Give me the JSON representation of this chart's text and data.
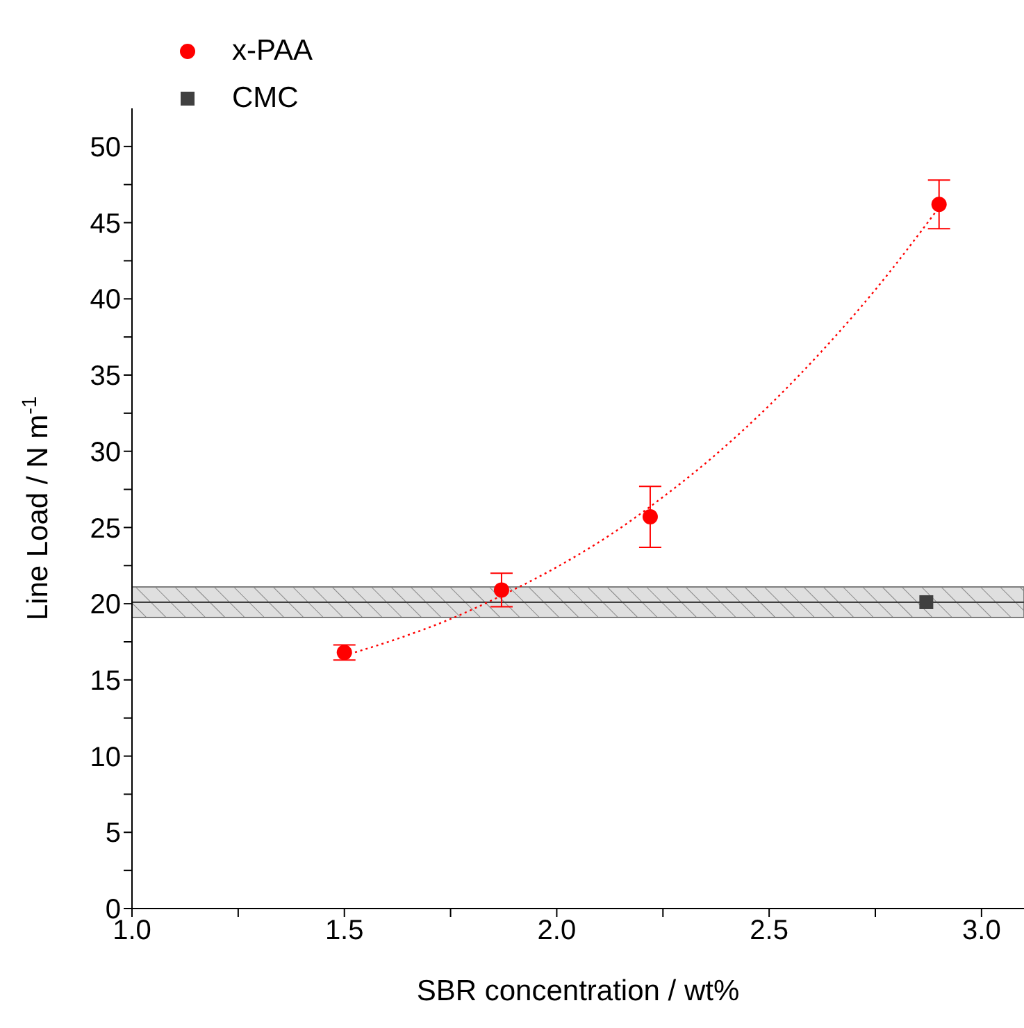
{
  "chart_data": {
    "type": "scatter",
    "xlabel": "SBR concentration / wt%",
    "ylabel": "Line Load / N m$^{-1}$",
    "xlim": [
      1.0,
      3.1
    ],
    "ylim": [
      0,
      52.5
    ],
    "xticks": [
      {
        "value": 1,
        "label": "1.0"
      },
      {
        "value": 1.25,
        "label": null
      },
      1.5,
      {
        "value": 1.75,
        "label": null
      },
      {
        "value": 2,
        "label": "2.0"
      },
      {
        "value": 2.25,
        "label": null
      },
      2.5,
      {
        "value": 2.75,
        "label": null
      },
      {
        "value": 3,
        "label": "3.0"
      }
    ],
    "yticks": [
      0,
      {
        "value": 2.5,
        "label": null
      },
      5,
      {
        "value": 7.5,
        "label": null
      },
      10,
      {
        "value": 12.5,
        "label": null
      },
      15,
      {
        "value": 17.5,
        "label": null
      },
      20,
      {
        "value": 22.5,
        "label": null
      },
      25,
      {
        "value": 27.5,
        "label": null
      },
      30,
      {
        "value": 32.5,
        "label": null
      },
      35,
      {
        "value": 37.5,
        "label": null
      },
      40,
      {
        "value": 42.5,
        "label": null
      },
      45,
      {
        "value": 47.5,
        "label": null
      },
      50
    ],
    "legend": "top left",
    "grid": false,
    "series": [
      {
        "name": "x-PAA",
        "type": "scatter",
        "color": "#ff0000",
        "marker": "circle",
        "x": [
          1.5,
          1.87,
          2.22,
          2.9
        ],
        "values": [
          16.8,
          20.9,
          25.7,
          46.2
        ],
        "errors": [
          0.5,
          1.1,
          2.0,
          1.6
        ]
      },
      {
        "name": "CMC",
        "type": "scatter",
        "color": "#404040",
        "marker": "square",
        "x": [
          2.87
        ],
        "values": [
          20.1
        ]
      },
      {
        "type": "line",
        "color": "#ff0000",
        "line_style": "dotted",
        "marker": "none",
        "x": [
          1.5,
          1.625,
          1.75,
          1.875,
          2.0,
          2.125,
          2.25,
          2.375,
          2.5,
          2.625,
          2.75,
          2.9
        ],
        "values": [
          16.6,
          17.7,
          19.0,
          20.6,
          22.4,
          24.5,
          27.0,
          29.8,
          33.0,
          36.6,
          40.6,
          46.0
        ]
      }
    ],
    "bands": [
      {
        "axis": "y",
        "from": 19.1,
        "to": 21.1,
        "color": "#7f7f7f"
      }
    ],
    "ref_lines": [
      {
        "axis": "y",
        "value": 20.1,
        "color": "#404040"
      }
    ]
  }
}
